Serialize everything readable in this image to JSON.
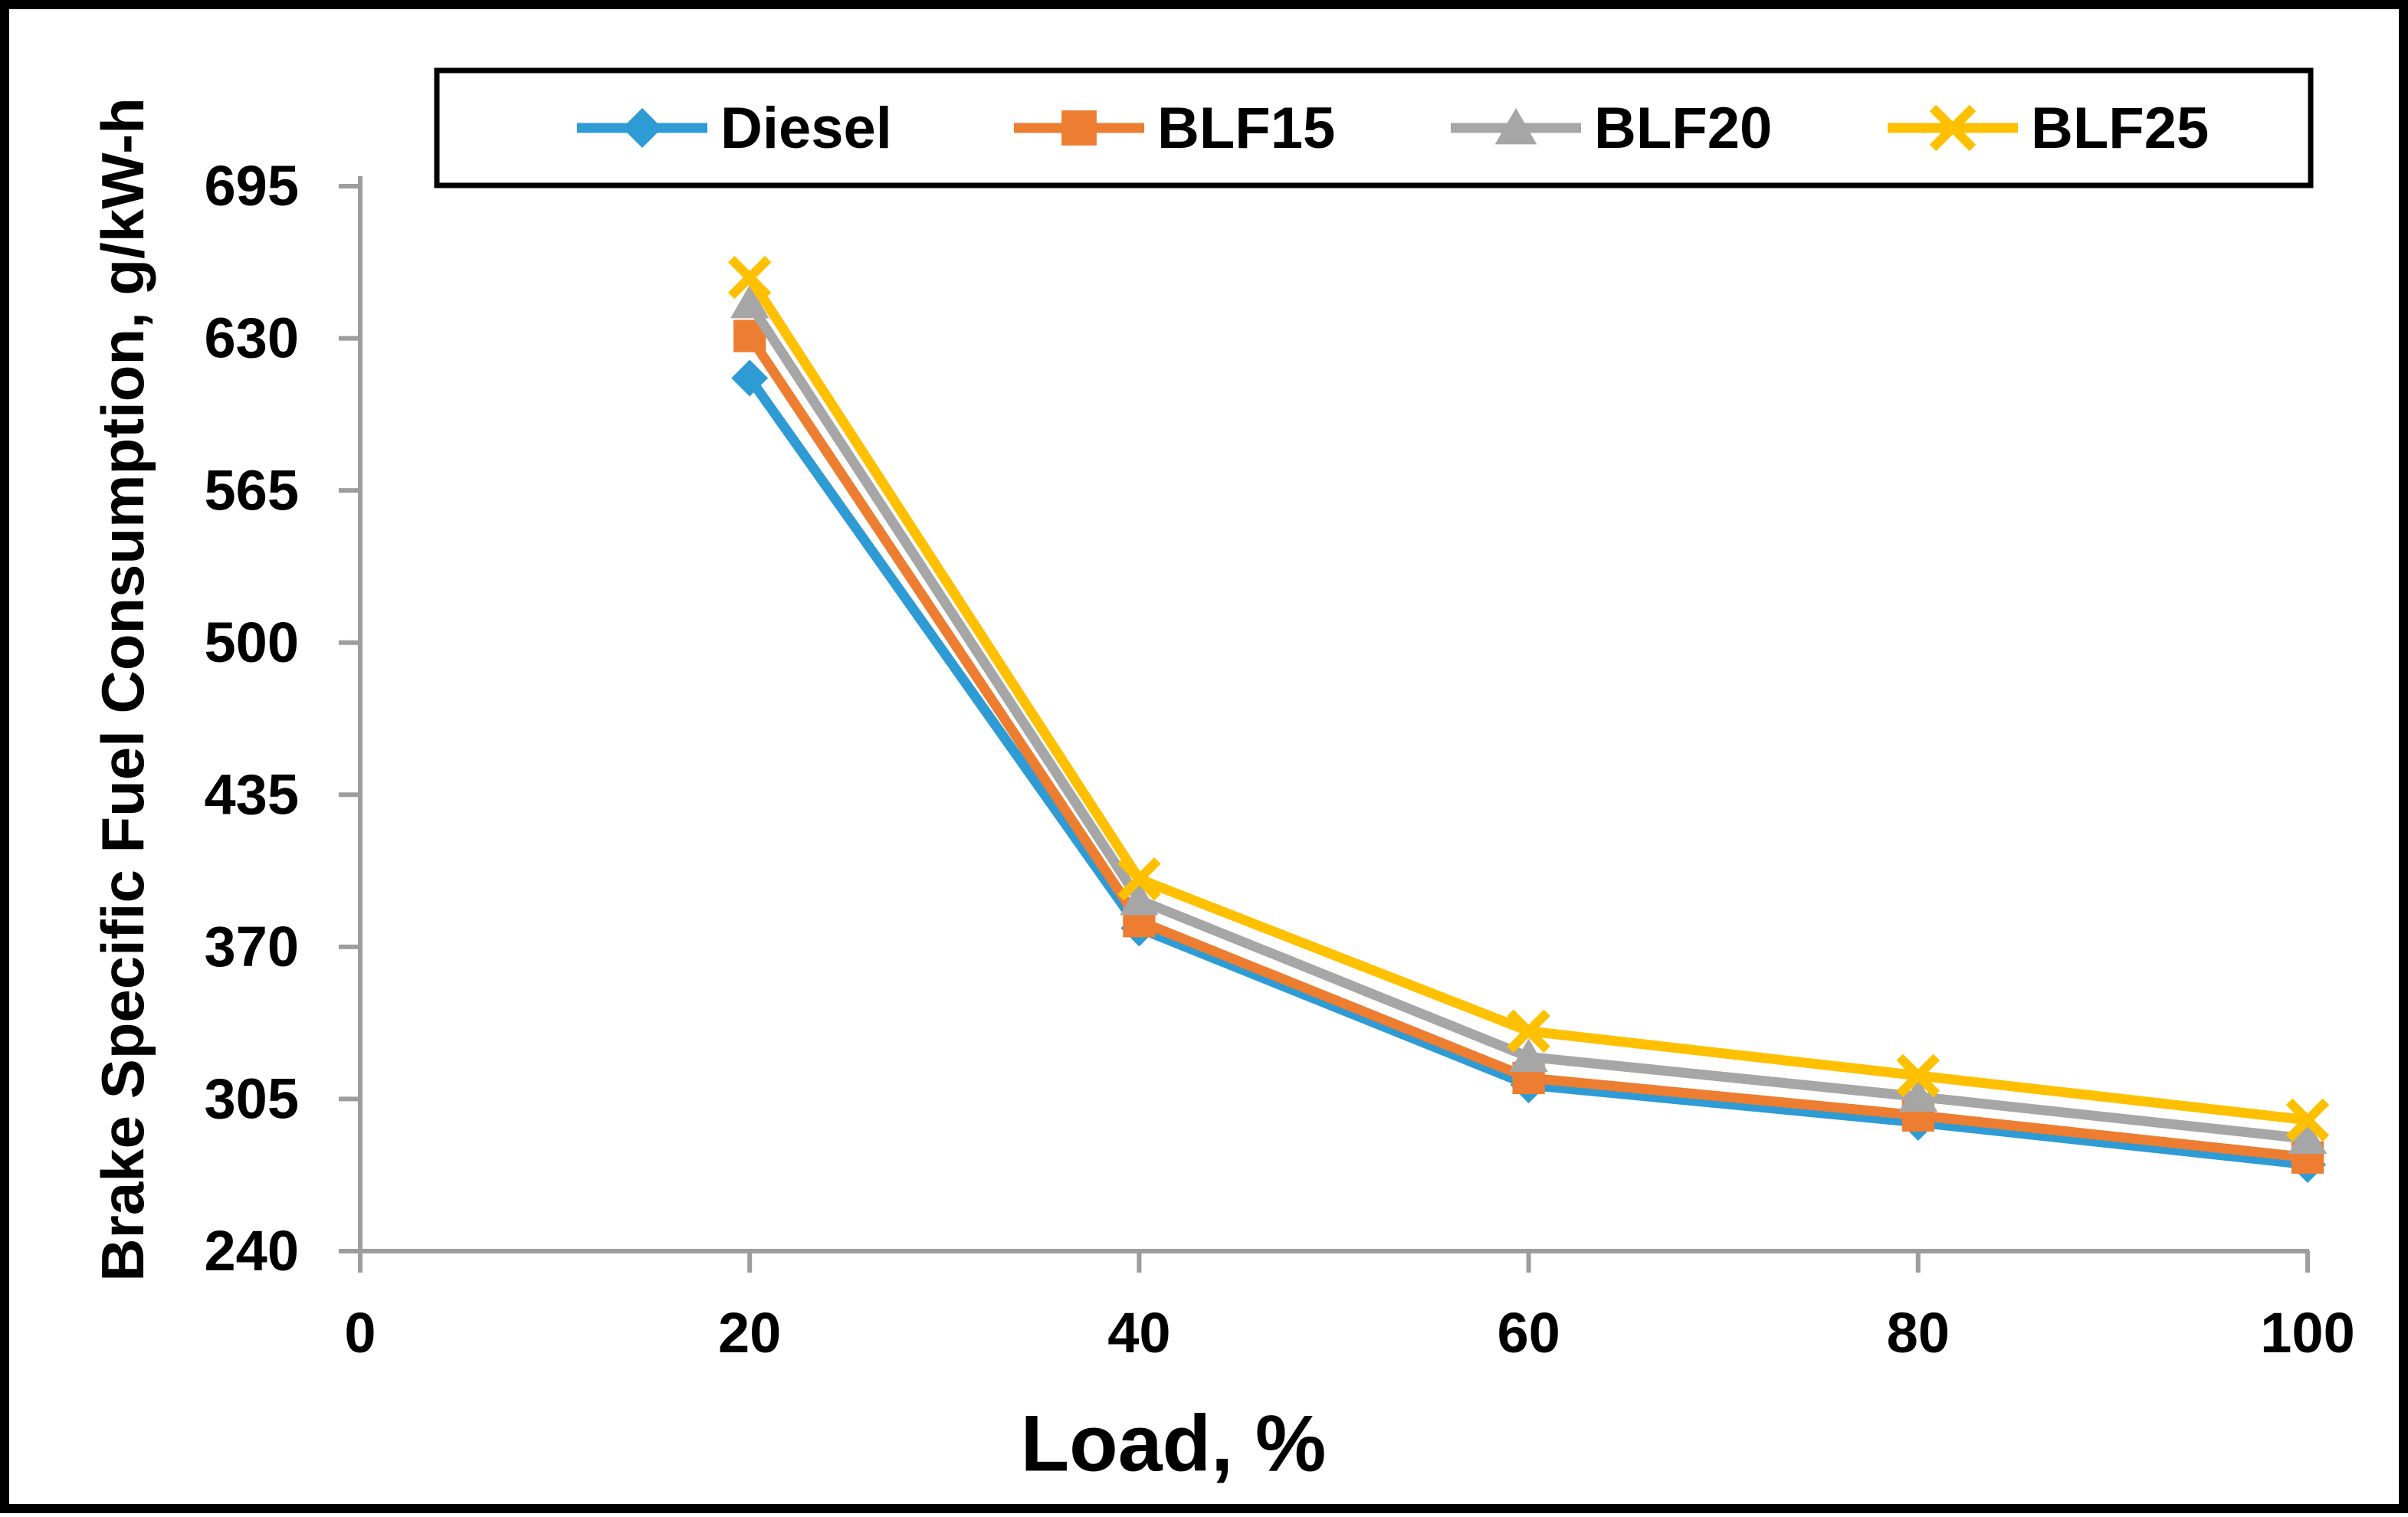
{
  "chart_data": {
    "type": "line",
    "title": "",
    "xlabel": "Load, %",
    "ylabel": "Brake Specific Fuel Consumption, g/kW-h",
    "x": [
      20,
      40,
      60,
      80,
      100
    ],
    "x_ticks": [
      0,
      20,
      40,
      60,
      80,
      100
    ],
    "y_ticks": [
      240,
      305,
      370,
      435,
      500,
      565,
      630,
      695
    ],
    "xlim": [
      0,
      100
    ],
    "ylim": [
      240,
      695
    ],
    "grid": false,
    "legend_position": "top",
    "series": [
      {
        "name": "Diesel",
        "marker": "diamond",
        "color": "#2E9BD5",
        "values": [
          613,
          378,
          311,
          295,
          277
        ]
      },
      {
        "name": "BLF15",
        "marker": "square",
        "color": "#ED7D31",
        "values": [
          631,
          381,
          314,
          298,
          280
        ]
      },
      {
        "name": "BLF20",
        "marker": "triangle",
        "color": "#A6A6A6",
        "values": [
          645,
          390,
          323,
          306,
          288
        ]
      },
      {
        "name": "BLF25",
        "marker": "x",
        "color": "#FFC000",
        "values": [
          656,
          399,
          334,
          315,
          296
        ]
      }
    ]
  },
  "style": {
    "axis_color": "#9D9D9D",
    "frame_color": "#000000",
    "legend_border_color": "#000000",
    "background": "#FFFFFF",
    "text_color": "#000000"
  }
}
